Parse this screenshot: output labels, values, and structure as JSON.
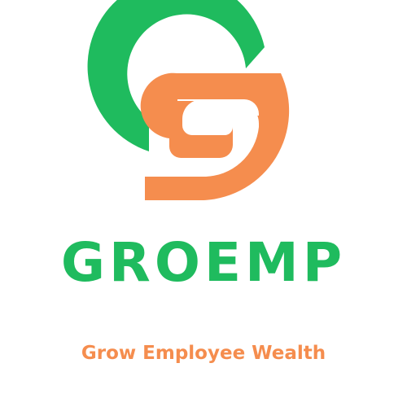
{
  "brand": {
    "name": "GROEMP",
    "tagline": "Grow Employee Wealth",
    "logo_icon": "groemp-g-logo-icon",
    "colors": {
      "green": "#1fbb5e",
      "orange": "#f58d4e",
      "background": "#ffffff"
    }
  }
}
